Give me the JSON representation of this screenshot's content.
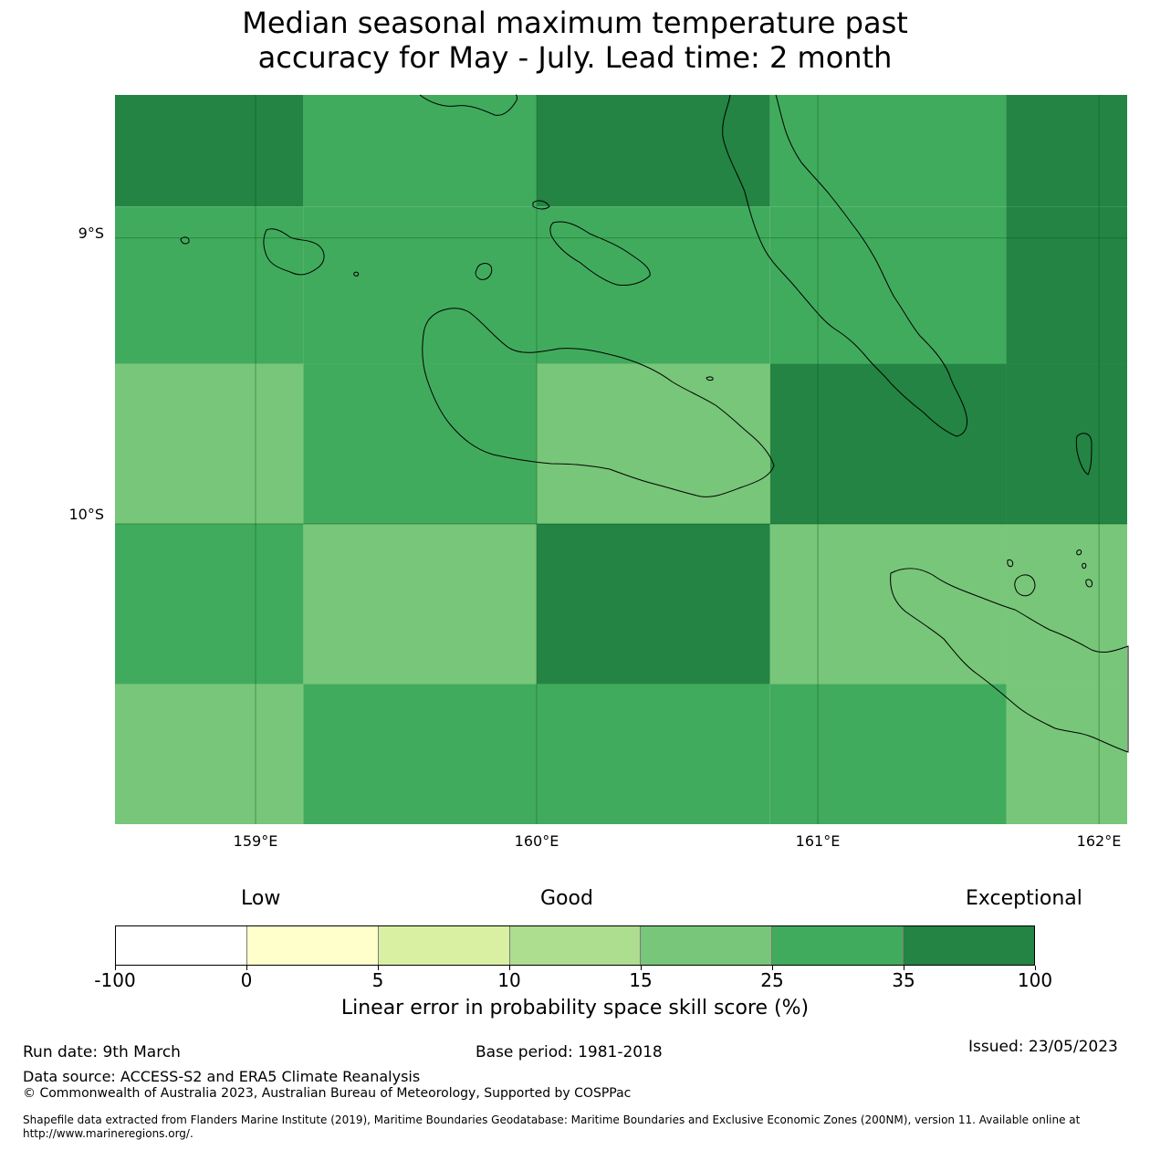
{
  "title": {
    "line1": "Median seasonal maximum temperature past",
    "line2": "accuracy for May - July. Lead time: 2 month"
  },
  "map": {
    "lat_labels": [
      "9°S",
      "10°S"
    ],
    "lon_labels": [
      "159°E",
      "160°E",
      "161°E",
      "162°E"
    ],
    "lat_values": [
      -9,
      -10
    ],
    "lon_values": [
      159,
      160,
      161,
      162
    ],
    "extent": {
      "lon_min": 158.5,
      "lon_max": 162.1,
      "lat_min": -11.05,
      "lat_max": -8.5
    },
    "cell_colors": {
      "dark": "#238443",
      "medium": "#41ab5d",
      "light": "#78c679"
    },
    "cells": [
      {
        "lon": [
          158.5,
          159.17
        ],
        "lat": [
          -8.5,
          -8.89
        ],
        "class": "dark"
      },
      {
        "lon": [
          159.17,
          160.0
        ],
        "lat": [
          -8.5,
          -8.89
        ],
        "class": "medium"
      },
      {
        "lon": [
          160.0,
          160.83
        ],
        "lat": [
          -8.5,
          -8.89
        ],
        "class": "dark"
      },
      {
        "lon": [
          160.83,
          161.67
        ],
        "lat": [
          -8.5,
          -8.89
        ],
        "class": "medium"
      },
      {
        "lon": [
          161.67,
          162.1
        ],
        "lat": [
          -8.5,
          -8.89
        ],
        "class": "dark"
      },
      {
        "lon": [
          158.5,
          159.17
        ],
        "lat": [
          -8.89,
          -9.44
        ],
        "class": "medium"
      },
      {
        "lon": [
          159.17,
          160.0
        ],
        "lat": [
          -8.89,
          -9.44
        ],
        "class": "medium"
      },
      {
        "lon": [
          160.0,
          160.83
        ],
        "lat": [
          -8.89,
          -9.44
        ],
        "class": "medium"
      },
      {
        "lon": [
          160.83,
          161.67
        ],
        "lat": [
          -8.89,
          -9.44
        ],
        "class": "medium"
      },
      {
        "lon": [
          161.67,
          162.1
        ],
        "lat": [
          -8.89,
          -9.44
        ],
        "class": "dark"
      },
      {
        "lon": [
          158.5,
          159.17
        ],
        "lat": [
          -9.44,
          -10.0
        ],
        "class": "light"
      },
      {
        "lon": [
          159.17,
          160.0
        ],
        "lat": [
          -9.44,
          -10.0
        ],
        "class": "medium"
      },
      {
        "lon": [
          160.0,
          160.83
        ],
        "lat": [
          -9.44,
          -10.0
        ],
        "class": "light"
      },
      {
        "lon": [
          160.83,
          161.67
        ],
        "lat": [
          -9.44,
          -10.0
        ],
        "class": "dark"
      },
      {
        "lon": [
          161.67,
          162.1
        ],
        "lat": [
          -9.44,
          -10.0
        ],
        "class": "dark"
      },
      {
        "lon": [
          158.5,
          159.17
        ],
        "lat": [
          -10.0,
          -10.56
        ],
        "class": "medium"
      },
      {
        "lon": [
          159.17,
          160.0
        ],
        "lat": [
          -10.0,
          -10.56
        ],
        "class": "light"
      },
      {
        "lon": [
          160.0,
          160.83
        ],
        "lat": [
          -10.0,
          -10.56
        ],
        "class": "dark"
      },
      {
        "lon": [
          160.83,
          161.67
        ],
        "lat": [
          -10.0,
          -10.56
        ],
        "class": "light"
      },
      {
        "lon": [
          161.67,
          162.1
        ],
        "lat": [
          -10.0,
          -10.56
        ],
        "class": "light"
      },
      {
        "lon": [
          158.5,
          159.17
        ],
        "lat": [
          -10.56,
          -11.05
        ],
        "class": "light"
      },
      {
        "lon": [
          159.17,
          160.0
        ],
        "lat": [
          -10.56,
          -11.05
        ],
        "class": "medium"
      },
      {
        "lon": [
          160.0,
          160.83
        ],
        "lat": [
          -10.56,
          -11.05
        ],
        "class": "medium"
      },
      {
        "lon": [
          160.83,
          161.67
        ],
        "lat": [
          -10.56,
          -11.05
        ],
        "class": "medium"
      },
      {
        "lon": [
          161.67,
          162.1
        ],
        "lat": [
          -10.56,
          -11.05
        ],
        "class": "light"
      }
    ]
  },
  "legend": {
    "categories": [
      "Low",
      "Good",
      "Exceptional"
    ],
    "ticks": [
      "-100",
      "0",
      "5",
      "10",
      "15",
      "25",
      "35",
      "100"
    ],
    "colors": [
      "#ffffff",
      "#ffffcc",
      "#d9f0a3",
      "#addd8e",
      "#78c679",
      "#41ab5d",
      "#238443"
    ],
    "label": "Linear error in probability space skill score (%)"
  },
  "footer": {
    "run_date": "Run date: 9th March",
    "base_period": "Base period: 1981-2018",
    "issued": "Issued: 23/05/2023",
    "data_source": "Data source: ACCESS-S2 and ERA5 Climate Reanalysis",
    "copyright": "© Commonwealth of Australia 2023, Australian Bureau of Meteorology, Supported by COSPPac",
    "shapefile": "Shapefile data extracted from Flanders Marine Institute (2019), Maritime Boundaries Geodatabase: Maritime Boundaries and Exclusive Economic Zones (200NM), version 11. Available online at http://www.marineregions.org/."
  }
}
